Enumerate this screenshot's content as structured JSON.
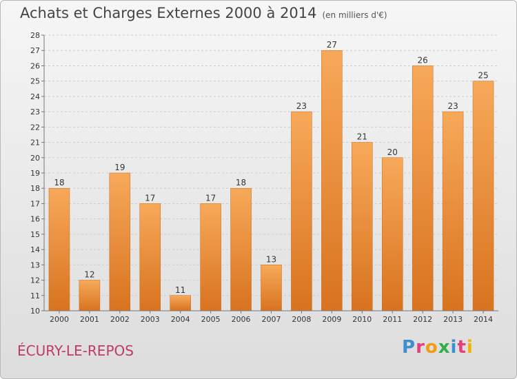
{
  "header": {
    "title": "Achats et Charges Externes 2000 à 2014",
    "subtitle": "(en milliers d'€)"
  },
  "footer": {
    "place": "ÉCURY-LE-REPOS",
    "logo_letters": [
      "P",
      "r",
      "o",
      "x",
      "i",
      "t",
      "i"
    ],
    "logo_colors": [
      "#3c8fd1",
      "#e5407a",
      "#f39c12",
      "#2fae4b",
      "#3c8fd1",
      "#e5407a",
      "#f0b400"
    ]
  },
  "colors": {
    "bar_top": "#f7a95a",
    "bar_bottom": "#d8731e",
    "axis": "#777777",
    "grid": "#cccccc"
  },
  "chart_data": {
    "type": "bar",
    "title": "Achats et Charges Externes 2000 à 2014",
    "subtitle": "(en milliers d'€)",
    "categories": [
      "2000",
      "2001",
      "2002",
      "2003",
      "2004",
      "2005",
      "2006",
      "2007",
      "2008",
      "2009",
      "2010",
      "2011",
      "2012",
      "2013",
      "2014"
    ],
    "values": [
      18,
      12,
      19,
      17,
      11,
      17,
      18,
      13,
      23,
      27,
      21,
      20,
      26,
      23,
      25
    ],
    "ylim": [
      10,
      28
    ],
    "yticks": [
      "10",
      "11",
      "12",
      "13",
      "14",
      "15",
      "16",
      "17",
      "18",
      "19",
      "20",
      "21",
      "22",
      "23",
      "24",
      "25",
      "26",
      "27",
      "28"
    ],
    "grid": true,
    "legend": "none"
  }
}
